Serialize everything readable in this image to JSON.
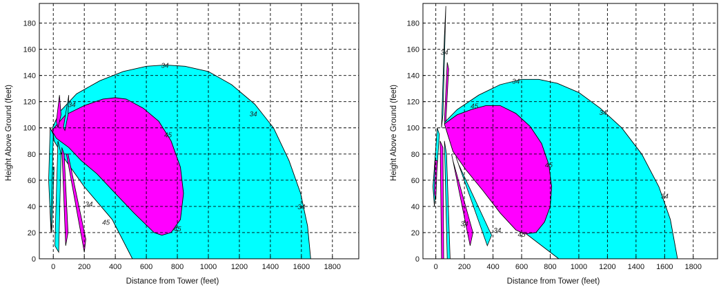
{
  "chart_data": [
    {
      "type": "area",
      "title": "",
      "xlabel": "Distance from Tower (feet)",
      "ylabel": "Height Above Ground (feet)",
      "xlim": [
        -90,
        1970
      ],
      "ylim": [
        0,
        195
      ],
      "x_ticks": [
        "0",
        "200",
        "400",
        "600",
        "800",
        "1000",
        "1200",
        "1400",
        "1600",
        "1800"
      ],
      "y_ticks": [
        "0",
        "20",
        "40",
        "60",
        "80",
        "100",
        "120",
        "140",
        "160",
        "180"
      ],
      "grid": true,
      "colors": {
        "outer": "#00ffff",
        "inner": "#ff00ff",
        "outline": "#000000"
      },
      "series": [
        {
          "values": [
            [
              -5,
              100
            ],
            [
              40,
              112
            ],
            [
              150,
              126
            ],
            [
              300,
              136
            ],
            [
              450,
              143
            ],
            [
              600,
              147
            ],
            [
              720,
              148
            ],
            [
              850,
              147
            ],
            [
              1000,
              143
            ],
            [
              1150,
              133
            ],
            [
              1300,
              118
            ],
            [
              1420,
              100
            ],
            [
              1520,
              75
            ],
            [
              1595,
              50
            ],
            [
              1640,
              25
            ],
            [
              1660,
              0
            ],
            [
              510,
              0
            ],
            [
              380,
              30
            ],
            [
              200,
              55
            ],
            [
              80,
              75
            ],
            [
              5,
              90
            ]
          ]
        },
        {
          "values": [
            [
              -10,
              98
            ],
            [
              80,
              110
            ],
            [
              200,
              117
            ],
            [
              320,
              122
            ],
            [
              400,
              123
            ],
            [
              470,
              122
            ],
            [
              580,
              115
            ],
            [
              680,
              105
            ],
            [
              760,
              90
            ],
            [
              820,
              70
            ],
            [
              840,
              50
            ],
            [
              820,
              30
            ],
            [
              760,
              20
            ],
            [
              700,
              18
            ],
            [
              650,
              20
            ],
            [
              520,
              35
            ],
            [
              400,
              50
            ],
            [
              280,
              65
            ],
            [
              180,
              75
            ],
            [
              100,
              85
            ],
            [
              20,
              92
            ]
          ]
        }
      ],
      "contour_labels": [
        {
          "text": "34",
          "x": 720,
          "y": 148
        },
        {
          "text": "34",
          "x": 1290,
          "y": 111
        },
        {
          "text": "34",
          "x": 1600,
          "y": 40
        },
        {
          "text": "34",
          "x": 120,
          "y": 118
        },
        {
          "text": "45",
          "x": 740,
          "y": 95
        },
        {
          "text": "45",
          "x": 800,
          "y": 23
        },
        {
          "text": "45",
          "x": 340,
          "y": 28
        },
        {
          "text": "34",
          "x": 230,
          "y": 42
        }
      ]
    },
    {
      "type": "area",
      "title": "",
      "xlabel": "Distance from Tower (feet)",
      "ylabel": "Height Above Ground (feet)",
      "xlim": [
        -90,
        1970
      ],
      "ylim": [
        0,
        195
      ],
      "x_ticks": [
        "0",
        "200",
        "400",
        "600",
        "800",
        "1000",
        "1200",
        "1400",
        "1600",
        "1800"
      ],
      "y_ticks": [
        "0",
        "20",
        "40",
        "60",
        "80",
        "100",
        "120",
        "140",
        "160",
        "180"
      ],
      "grid": true,
      "colors": {
        "outer": "#00ffff",
        "inner": "#ff00ff",
        "outline": "#000000"
      },
      "series": [
        {
          "values": [
            [
              60,
              104
            ],
            [
              150,
              114
            ],
            [
              300,
              125
            ],
            [
              450,
              133
            ],
            [
              600,
              137
            ],
            [
              720,
              137
            ],
            [
              850,
              134
            ],
            [
              1000,
              127
            ],
            [
              1150,
              115
            ],
            [
              1300,
              100
            ],
            [
              1440,
              80
            ],
            [
              1560,
              55
            ],
            [
              1640,
              30
            ],
            [
              1690,
              0
            ],
            [
              860,
              0
            ],
            [
              620,
              20
            ],
            [
              420,
              45
            ],
            [
              250,
              65
            ],
            [
              120,
              85
            ]
          ]
        },
        {
          "values": [
            [
              60,
              103
            ],
            [
              150,
              110
            ],
            [
              250,
              114
            ],
            [
              350,
              117
            ],
            [
              450,
              117
            ],
            [
              560,
              111
            ],
            [
              660,
              101
            ],
            [
              740,
              88
            ],
            [
              790,
              72
            ],
            [
              810,
              55
            ],
            [
              800,
              40
            ],
            [
              760,
              28
            ],
            [
              700,
              20
            ],
            [
              620,
              19
            ],
            [
              560,
              22
            ],
            [
              450,
              35
            ],
            [
              330,
              52
            ],
            [
              210,
              68
            ],
            [
              120,
              82
            ]
          ]
        }
      ],
      "contour_labels": [
        {
          "text": "34",
          "x": 560,
          "y": 136
        },
        {
          "text": "34",
          "x": 1170,
          "y": 112
        },
        {
          "text": "34",
          "x": 1600,
          "y": 48
        },
        {
          "text": "34",
          "x": 60,
          "y": 158
        },
        {
          "text": "45",
          "x": 270,
          "y": 117
        },
        {
          "text": "45",
          "x": 790,
          "y": 72
        },
        {
          "text": "45",
          "x": 600,
          "y": 19
        },
        {
          "text": "34",
          "x": 430,
          "y": 22
        },
        {
          "text": "34",
          "x": 200,
          "y": 27
        }
      ]
    }
  ]
}
